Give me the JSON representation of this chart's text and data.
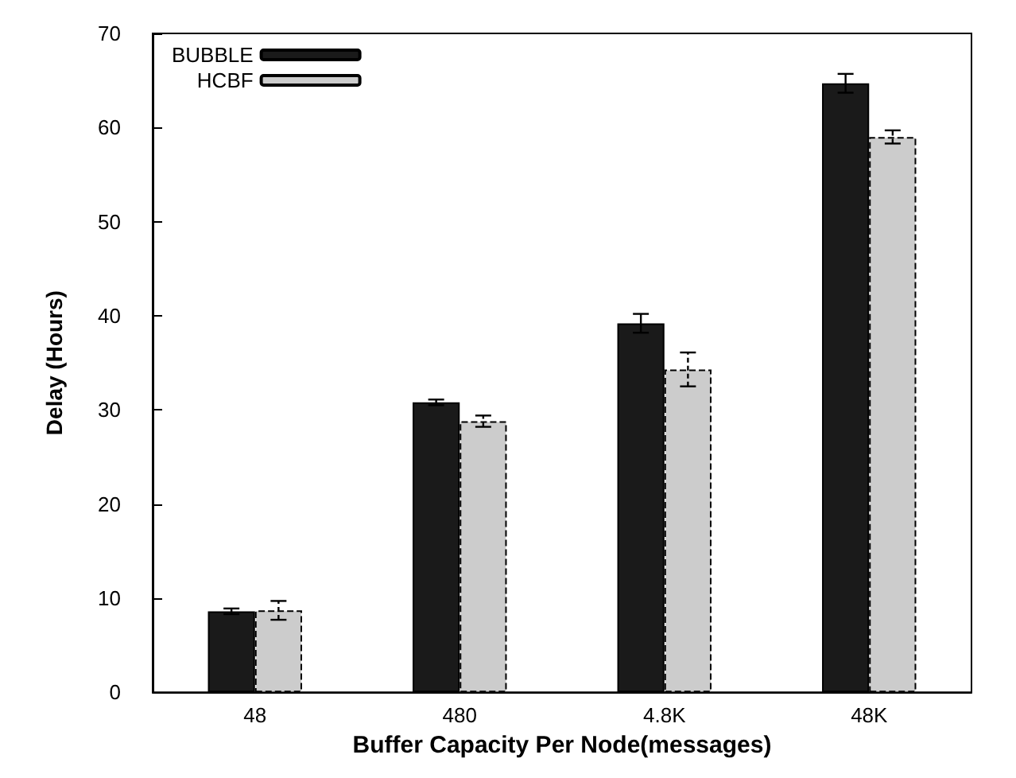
{
  "chart_data": {
    "type": "bar",
    "xlabel": "Buffer Capacity Per Node(messages)",
    "ylabel": "Delay (Hours)",
    "categories": [
      "48",
      "480",
      "4.8K",
      "48K"
    ],
    "series": [
      {
        "name": "BUBBLE",
        "color": "#1a1a1a",
        "values": [
          8.6,
          30.8,
          39.2,
          64.7
        ],
        "errors": [
          0.3,
          0.3,
          1,
          1
        ]
      },
      {
        "name": "HCBF",
        "color": "#cccccc",
        "line_style": "dashed",
        "values": [
          8.7,
          28.8,
          34.3,
          59
        ],
        "errors": [
          1,
          0.6,
          1.8,
          0.7
        ]
      }
    ],
    "ylim": [
      0,
      70
    ],
    "yticks": [
      0,
      10,
      20,
      30,
      40,
      50,
      60,
      70
    ],
    "grid": false,
    "legend": "top left"
  }
}
